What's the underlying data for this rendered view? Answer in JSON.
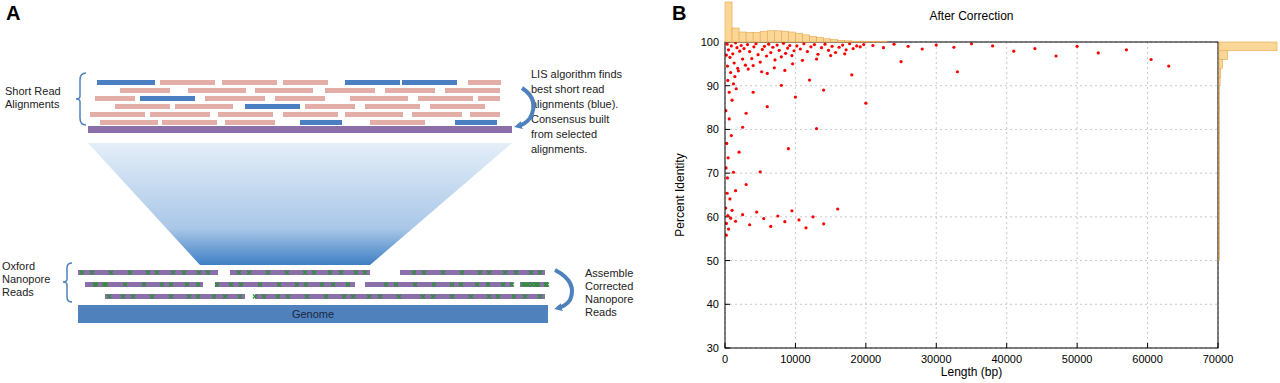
{
  "panel_a": {
    "label": "A",
    "short_read_label": [
      "Short Read",
      "Alignments"
    ],
    "lis_note": [
      "LIS algorithm finds",
      "best short read",
      "alignments (blue).",
      "Consensus built",
      "from selected",
      "alignments."
    ],
    "nanopore_label": [
      "Oxford",
      "Nanopore",
      "Reads"
    ],
    "genome_label": "Genome",
    "assemble_note": [
      "Assemble",
      "Corrected",
      "Nanopore",
      "Reads"
    ]
  },
  "chart_data": {
    "type": "scatter",
    "panel_label": "B",
    "title": "After Correction",
    "x_label": "Length (bp)",
    "y_label": "Percent Identity",
    "color": "#ff0000",
    "grid": true,
    "xlim": [
      0,
      70000
    ],
    "ylim": [
      30,
      100
    ],
    "xticks": [
      0,
      10000,
      20000,
      30000,
      40000,
      50000,
      60000,
      70000
    ],
    "yticks": [
      30,
      40,
      50,
      60,
      70,
      80,
      90,
      100
    ],
    "x": [
      300,
      500,
      700,
      900,
      1100,
      1300,
      1500,
      1700,
      1900,
      2100,
      2300,
      2500,
      2700,
      2900,
      400,
      600,
      800,
      1000,
      1200,
      1400,
      1600,
      1800,
      200,
      350,
      3200,
      3500,
      3800,
      4100,
      4400,
      4700,
      5000,
      5300,
      5600,
      5900,
      6200,
      6500,
      6800,
      7100,
      7400,
      7700,
      8000,
      8300,
      8600,
      8900,
      9200,
      9500,
      9800,
      3300,
      4000,
      5200,
      6000,
      7000,
      8500,
      9600,
      10200,
      10700,
      11200,
      11700,
      12200,
      12700,
      13200,
      13700,
      14200,
      14700,
      15200,
      15700,
      16200,
      16700,
      17200,
      17700,
      18200,
      18700,
      19200,
      19700,
      11000,
      13000,
      15000,
      17000,
      21000,
      22500,
      24000,
      26000,
      28000,
      30000,
      32500,
      35000,
      38000,
      41000,
      44000,
      47000,
      50000,
      53000,
      57000,
      60500,
      63000,
      25000,
      33000,
      100,
      200,
      300,
      150,
      250,
      400,
      500,
      350,
      450,
      600,
      700,
      800,
      900,
      120,
      180,
      1000,
      1200,
      1500,
      2000,
      2500,
      3000,
      1500,
      2500,
      3500,
      4500,
      5500,
      6500,
      7500,
      8500,
      9500,
      10500,
      11500,
      12500,
      14000,
      16000,
      4000,
      6000,
      8000,
      10000,
      12000,
      14000,
      18000,
      5000,
      9000,
      13000,
      20000,
      3000
    ],
    "values": [
      99.5,
      98.2,
      96.5,
      99.1,
      97.3,
      95.2,
      99.8,
      98.7,
      93.4,
      97.9,
      99.2,
      96.1,
      98.5,
      94.7,
      91.2,
      88.5,
      93.0,
      86.7,
      90.4,
      92.1,
      89.3,
      94.0,
      97.0,
      94.5,
      99.4,
      97.8,
      96.2,
      98.9,
      99.6,
      97.1,
      95.4,
      98.3,
      99.0,
      96.8,
      99.5,
      97.6,
      98.8,
      95.9,
      99.3,
      98.1,
      96.6,
      99.7,
      97.4,
      98.6,
      99.2,
      96.9,
      98.0,
      93.8,
      94.6,
      93.2,
      92.8,
      94.1,
      93.5,
      95.0,
      99.1,
      98.4,
      99.6,
      97.8,
      98.9,
      99.4,
      97.2,
      98.7,
      99.5,
      98.1,
      99.0,
      97.6,
      98.8,
      99.3,
      98.2,
      99.6,
      98.5,
      99.1,
      98.9,
      99.4,
      95.8,
      96.1,
      96.9,
      97.3,
      99.2,
      98.7,
      99.5,
      99.0,
      98.4,
      99.3,
      98.8,
      99.6,
      99.1,
      97.9,
      98.5,
      96.8,
      99.0,
      97.5,
      98.2,
      96.0,
      94.5,
      95.5,
      93.2,
      62.0,
      58.5,
      65.4,
      71.2,
      76.8,
      60.3,
      57.2,
      68.9,
      73.5,
      82.4,
      64.1,
      59.7,
      78.6,
      84.3,
      55.8,
      61.5,
      70.2,
      66.0,
      74.8,
      80.5,
      83.7,
      59.0,
      60.5,
      58.2,
      61.1,
      59.6,
      57.8,
      60.2,
      58.9,
      61.4,
      59.3,
      57.5,
      60.0,
      58.4,
      61.8,
      88.5,
      85.2,
      90.1,
      87.4,
      91.3,
      89.0,
      92.5,
      70.3,
      75.6,
      80.2,
      86.0,
      67.4
    ],
    "x_histogram": {
      "bins": [
        0,
        1000,
        2000,
        3000,
        4000,
        5000,
        6000,
        7000,
        8000,
        9000,
        10000,
        11000,
        12000,
        13000,
        14000,
        15000,
        16000,
        17000,
        18000,
        19000,
        20000,
        21000,
        22000,
        23000,
        24000,
        25000,
        26000,
        27000,
        28000,
        29000,
        30000
      ],
      "counts": [
        100,
        35,
        25,
        24,
        24,
        26,
        28,
        28,
        27,
        25,
        22,
        18,
        14,
        11,
        8,
        6,
        4,
        3,
        2,
        2,
        1,
        1,
        1,
        0,
        0,
        0,
        0,
        0,
        0,
        0
      ]
    },
    "y_histogram": {
      "bins": [
        50,
        52,
        54,
        56,
        58,
        60,
        62,
        64,
        66,
        68,
        70,
        72,
        74,
        76,
        78,
        80,
        82,
        84,
        86,
        88,
        90,
        92,
        94,
        96,
        98,
        100
      ],
      "counts": [
        1,
        1,
        1,
        1,
        1,
        1,
        1,
        1,
        1,
        1,
        1,
        1,
        1,
        1,
        1,
        1,
        1,
        1,
        1,
        1,
        2,
        3,
        6,
        15,
        100
      ]
    }
  }
}
